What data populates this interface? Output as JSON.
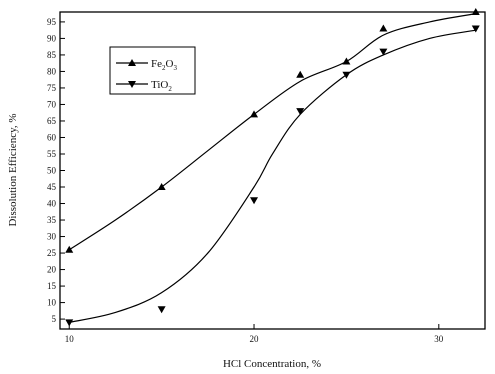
{
  "chart_data": {
    "type": "scatter",
    "title": "",
    "xlabel": "HCl Concentration, %",
    "ylabel": "Dissolution Efficiency, %",
    "xlim": [
      9.5,
      32.5
    ],
    "ylim": [
      2,
      98
    ],
    "xticks": [
      10,
      20,
      30
    ],
    "yticks": [
      5,
      10,
      15,
      20,
      25,
      30,
      35,
      40,
      45,
      50,
      55,
      60,
      65,
      70,
      75,
      80,
      85,
      90,
      95
    ],
    "grid": false,
    "legend_position": "top-left",
    "series": [
      {
        "name": "Fe2O3",
        "legend_main": "Fe",
        "legend_sub1": "2",
        "legend_mid": "O",
        "legend_sub2": "3",
        "marker": "triangle-up",
        "color": "#000000",
        "x": [
          10,
          15,
          20,
          22.5,
          25,
          27,
          32
        ],
        "y": [
          26,
          45,
          67,
          79,
          83,
          93,
          98
        ],
        "curve_x": [
          10,
          12.5,
          15,
          17.5,
          20,
          22.5,
          25,
          27,
          29.5,
          32
        ],
        "curve_y": [
          26,
          35,
          45,
          56,
          67,
          77,
          83,
          91,
          95,
          97.5
        ]
      },
      {
        "name": "TiO2",
        "legend_main": "Ti",
        "legend_sub1": "",
        "legend_mid": "O",
        "legend_sub2": "2",
        "marker": "triangle-down",
        "color": "#000000",
        "x": [
          10,
          15,
          20,
          22.5,
          25,
          27,
          32
        ],
        "y": [
          4,
          8,
          41,
          68,
          79,
          86,
          93
        ],
        "curve_x": [
          10,
          12.5,
          15,
          17.5,
          20,
          21,
          22.5,
          25,
          27,
          29.5,
          32
        ],
        "curve_y": [
          4,
          7,
          13,
          25,
          45,
          55,
          67,
          79,
          85,
          90,
          92.5
        ]
      }
    ]
  }
}
